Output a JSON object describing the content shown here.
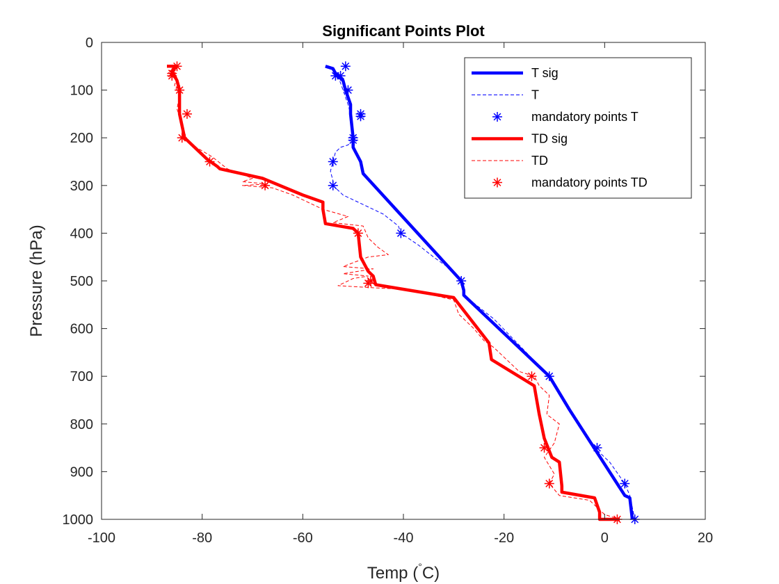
{
  "chart_data": {
    "type": "line",
    "title": "Significant Points Plot",
    "xlabel": "Temp (",
    "xlabel_unit": "C)",
    "xlabel_degree": "°",
    "ylabel": "Pressure (hPa)",
    "xlim": [
      -100,
      20
    ],
    "ylim": [
      0,
      1000
    ],
    "y_reversed": true,
    "grid": false,
    "legend_placement": "top-right",
    "xticks": [
      -100,
      -80,
      -60,
      -40,
      -20,
      0,
      20
    ],
    "yticks": [
      0,
      100,
      200,
      300,
      400,
      500,
      600,
      700,
      800,
      900,
      1000
    ],
    "series": [
      {
        "name": "T sig",
        "style": "solid",
        "color": "#0000ff",
        "points": [
          [
            -55.5,
            50
          ],
          [
            -54,
            55
          ],
          [
            -53.5,
            65
          ],
          [
            -52,
            80
          ],
          [
            -51.5,
            100
          ],
          [
            -50.5,
            130
          ],
          [
            -50.5,
            150
          ],
          [
            -50,
            200
          ],
          [
            -50,
            220
          ],
          [
            -48.5,
            250
          ],
          [
            -48,
            275
          ],
          [
            -28.5,
            500
          ],
          [
            -28,
            520
          ],
          [
            -28,
            530
          ],
          [
            -11,
            700
          ],
          [
            -7,
            770
          ],
          [
            4,
            950
          ],
          [
            5,
            955
          ],
          [
            5.5,
            1000
          ]
        ]
      },
      {
        "name": "T",
        "style": "dashed",
        "color": "#0000ff",
        "points": [
          [
            -55.5,
            50
          ],
          [
            -53.5,
            60
          ],
          [
            -53,
            70
          ],
          [
            -52.5,
            85
          ],
          [
            -52,
            100
          ],
          [
            -51.5,
            115
          ],
          [
            -51,
            130
          ],
          [
            -50.5,
            150
          ],
          [
            -50.5,
            170
          ],
          [
            -50,
            190
          ],
          [
            -50,
            205
          ],
          [
            -51,
            215
          ],
          [
            -52.5,
            220
          ],
          [
            -53.5,
            230
          ],
          [
            -54,
            250
          ],
          [
            -54.5,
            270
          ],
          [
            -54,
            290
          ],
          [
            -54,
            300
          ],
          [
            -52,
            320
          ],
          [
            -48,
            340
          ],
          [
            -44,
            360
          ],
          [
            -41,
            385
          ],
          [
            -40.5,
            400
          ],
          [
            -37,
            425
          ],
          [
            -34,
            450
          ],
          [
            -30,
            480
          ],
          [
            -28.5,
            500
          ],
          [
            -28,
            530
          ],
          [
            -22,
            580
          ],
          [
            -11,
            700
          ],
          [
            -6,
            790
          ],
          [
            -2,
            850
          ],
          [
            1,
            880
          ],
          [
            4,
            925
          ],
          [
            5,
            950
          ],
          [
            6,
            1000
          ]
        ]
      },
      {
        "name": "mandatory points T",
        "style": "marker",
        "color": "#0000ff",
        "points": [
          [
            -51.5,
            50
          ],
          [
            -53.5,
            70
          ],
          [
            -52.5,
            70
          ],
          [
            -51,
            100
          ],
          [
            -48.5,
            150
          ],
          [
            -48.5,
            155
          ],
          [
            -50,
            200
          ],
          [
            -50,
            205
          ],
          [
            -54,
            250
          ],
          [
            -54,
            300
          ],
          [
            -40.5,
            400
          ],
          [
            -28.5,
            500
          ],
          [
            -11,
            700
          ],
          [
            -1.5,
            850
          ],
          [
            4,
            925
          ],
          [
            6,
            1000
          ]
        ]
      },
      {
        "name": "TD sig",
        "style": "solid",
        "color": "#ff0000",
        "points": [
          [
            -87,
            50
          ],
          [
            -85,
            50
          ],
          [
            -86,
            60
          ],
          [
            -85.5,
            70
          ],
          [
            -85,
            80
          ],
          [
            -84.5,
            100
          ],
          [
            -84.5,
            150
          ],
          [
            -83.5,
            200
          ],
          [
            -82,
            215
          ],
          [
            -79,
            245
          ],
          [
            -77,
            260
          ],
          [
            -76.5,
            265
          ],
          [
            -68,
            285
          ],
          [
            -60,
            320
          ],
          [
            -56,
            335
          ],
          [
            -56,
            350
          ],
          [
            -55.5,
            380
          ],
          [
            -50,
            390
          ],
          [
            -49,
            400
          ],
          [
            -48.5,
            450
          ],
          [
            -47,
            480
          ],
          [
            -46,
            490
          ],
          [
            -45.5,
            508
          ],
          [
            -30,
            535
          ],
          [
            -23,
            630
          ],
          [
            -22.5,
            665
          ],
          [
            -14,
            720
          ],
          [
            -13,
            780
          ],
          [
            -12,
            830
          ],
          [
            -10.5,
            870
          ],
          [
            -9,
            880
          ],
          [
            -8.5,
            930
          ],
          [
            -8.5,
            943
          ],
          [
            -2,
            955
          ],
          [
            -1,
            985
          ],
          [
            -1,
            1000
          ],
          [
            3,
            1000
          ]
        ]
      },
      {
        "name": "TD",
        "style": "dashed",
        "color": "#ff0000",
        "points": [
          [
            -85.5,
            50
          ],
          [
            -86.5,
            60
          ],
          [
            -85,
            75
          ],
          [
            -85.5,
            90
          ],
          [
            -84.5,
            110
          ],
          [
            -85,
            140
          ],
          [
            -84,
            170
          ],
          [
            -84,
            200
          ],
          [
            -82,
            215
          ],
          [
            -78,
            240
          ],
          [
            -75,
            265
          ],
          [
            -70,
            285
          ],
          [
            -72,
            292
          ],
          [
            -67,
            297
          ],
          [
            -72,
            300
          ],
          [
            -66,
            305
          ],
          [
            -62,
            320
          ],
          [
            -56,
            350
          ],
          [
            -51,
            365
          ],
          [
            -54,
            378
          ],
          [
            -48,
            385
          ],
          [
            -47,
            410
          ],
          [
            -45,
            430
          ],
          [
            -43,
            445
          ],
          [
            -47,
            450
          ],
          [
            -52,
            470
          ],
          [
            -46,
            475
          ],
          [
            -52,
            485
          ],
          [
            -47,
            490
          ],
          [
            -50,
            495
          ],
          [
            -53,
            510
          ],
          [
            -45,
            515
          ],
          [
            -39,
            518
          ],
          [
            -30,
            540
          ],
          [
            -29,
            570
          ],
          [
            -26,
            600
          ],
          [
            -24,
            625
          ],
          [
            -22,
            640
          ],
          [
            -20,
            660
          ],
          [
            -17,
            690
          ],
          [
            -14,
            700
          ],
          [
            -13,
            720
          ],
          [
            -11,
            740
          ],
          [
            -11.5,
            780
          ],
          [
            -9,
            800
          ],
          [
            -10,
            840
          ],
          [
            -12,
            870
          ],
          [
            -10,
            905
          ],
          [
            -11,
            925
          ],
          [
            -9,
            950
          ],
          [
            -3,
            960
          ],
          [
            0,
            990
          ],
          [
            3,
            1000
          ]
        ]
      },
      {
        "name": "mandatory points TD",
        "style": "marker",
        "color": "#ff0000",
        "points": [
          [
            -85,
            50
          ],
          [
            -86,
            65
          ],
          [
            -86,
            70
          ],
          [
            -84.5,
            100
          ],
          [
            -83,
            150
          ],
          [
            -84,
            200
          ],
          [
            -78.5,
            250
          ],
          [
            -67.5,
            300
          ],
          [
            -49,
            400
          ],
          [
            -46.5,
            500
          ],
          [
            -47,
            505
          ],
          [
            -14.5,
            700
          ],
          [
            -12,
            850
          ],
          [
            -11,
            925
          ],
          [
            2.5,
            1000
          ]
        ]
      }
    ]
  }
}
